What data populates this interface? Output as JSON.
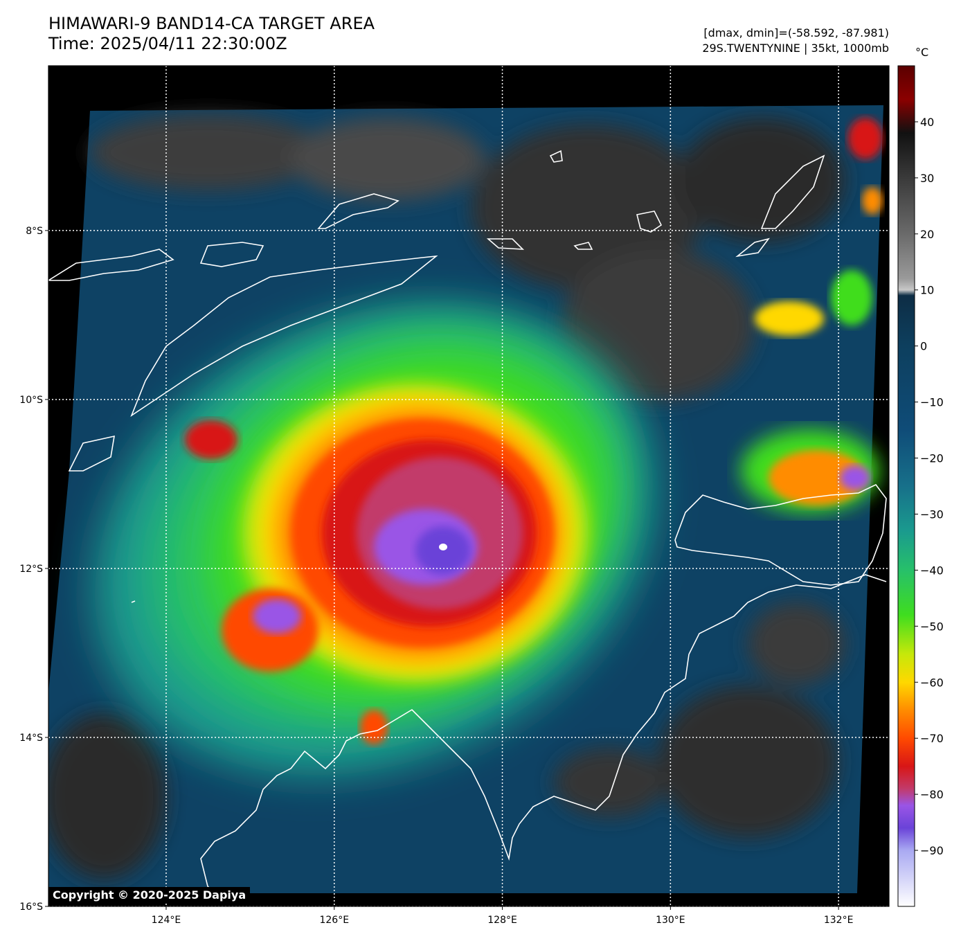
{
  "header": {
    "title_line1": "HIMAWARI-9 BAND14-CA TARGET AREA",
    "title_line2": "Time: 2025/04/11 22:30:00Z",
    "stats_line1": "[dmax, dmin]=(-58.592, -87.981)",
    "stats_line2": "29S.TWENTYNINE | 35kt, 1000mb"
  },
  "map": {
    "lon_range": [
      122.6,
      132.6
    ],
    "lat_range": [
      -16.0,
      -6.05
    ],
    "lon_ticks": [
      {
        "value": 124,
        "label": "124°E"
      },
      {
        "value": 126,
        "label": "126°E"
      },
      {
        "value": 128,
        "label": "128°E"
      },
      {
        "value": 130,
        "label": "130°E"
      },
      {
        "value": 132,
        "label": "132°E"
      }
    ],
    "lat_ticks": [
      {
        "value": -8,
        "label": "8°S"
      },
      {
        "value": -10,
        "label": "10°S"
      },
      {
        "value": -12,
        "label": "12°S"
      },
      {
        "value": -14,
        "label": "14°S"
      },
      {
        "value": -16,
        "label": "16°S"
      }
    ],
    "storm_center": {
      "lon": 127.3,
      "lat": -11.8
    },
    "background_color": "#000000",
    "coastline_color": "#ffffff"
  },
  "colorbar": {
    "unit": "°C",
    "range": [
      -100,
      50
    ],
    "ticks": [
      {
        "value": 40,
        "label": "40"
      },
      {
        "value": 30,
        "label": "30"
      },
      {
        "value": 20,
        "label": "20"
      },
      {
        "value": 10,
        "label": "10"
      },
      {
        "value": 0,
        "label": "0"
      },
      {
        "value": -10,
        "label": "−10"
      },
      {
        "value": -20,
        "label": "−20"
      },
      {
        "value": -30,
        "label": "−30"
      },
      {
        "value": -40,
        "label": "−40"
      },
      {
        "value": -50,
        "label": "−50"
      },
      {
        "value": -60,
        "label": "−60"
      },
      {
        "value": -70,
        "label": "−70"
      },
      {
        "value": -80,
        "label": "−80"
      },
      {
        "value": -90,
        "label": "−90"
      }
    ],
    "stops": [
      {
        "value": 50,
        "color": "#5a0000"
      },
      {
        "value": 44,
        "color": "#8b0000"
      },
      {
        "value": 38,
        "color": "#111111"
      },
      {
        "value": 30,
        "color": "#3a3a3a"
      },
      {
        "value": 20,
        "color": "#6a6a6a"
      },
      {
        "value": 12,
        "color": "#9a9a9a"
      },
      {
        "value": 10,
        "color": "#c8c8c8"
      },
      {
        "value": 9,
        "color": "#0d2d45"
      },
      {
        "value": 0,
        "color": "#0d3f5e"
      },
      {
        "value": -15,
        "color": "#0f4c78"
      },
      {
        "value": -25,
        "color": "#17708a"
      },
      {
        "value": -33,
        "color": "#1a9a8e"
      },
      {
        "value": -40,
        "color": "#27c06a"
      },
      {
        "value": -48,
        "color": "#3fdd1f"
      },
      {
        "value": -55,
        "color": "#c6e80a"
      },
      {
        "value": -60,
        "color": "#ffd800"
      },
      {
        "value": -65,
        "color": "#ff8c00"
      },
      {
        "value": -70,
        "color": "#ff4a00"
      },
      {
        "value": -75,
        "color": "#d81616"
      },
      {
        "value": -79,
        "color": "#c23a6a"
      },
      {
        "value": -82,
        "color": "#9a55e6"
      },
      {
        "value": -86,
        "color": "#6a43d8"
      },
      {
        "value": -90,
        "color": "#a9a9f2"
      },
      {
        "value": -100,
        "color": "#ffffff"
      }
    ]
  },
  "copyright": "Copyright © 2020-2025 Dapiya"
}
